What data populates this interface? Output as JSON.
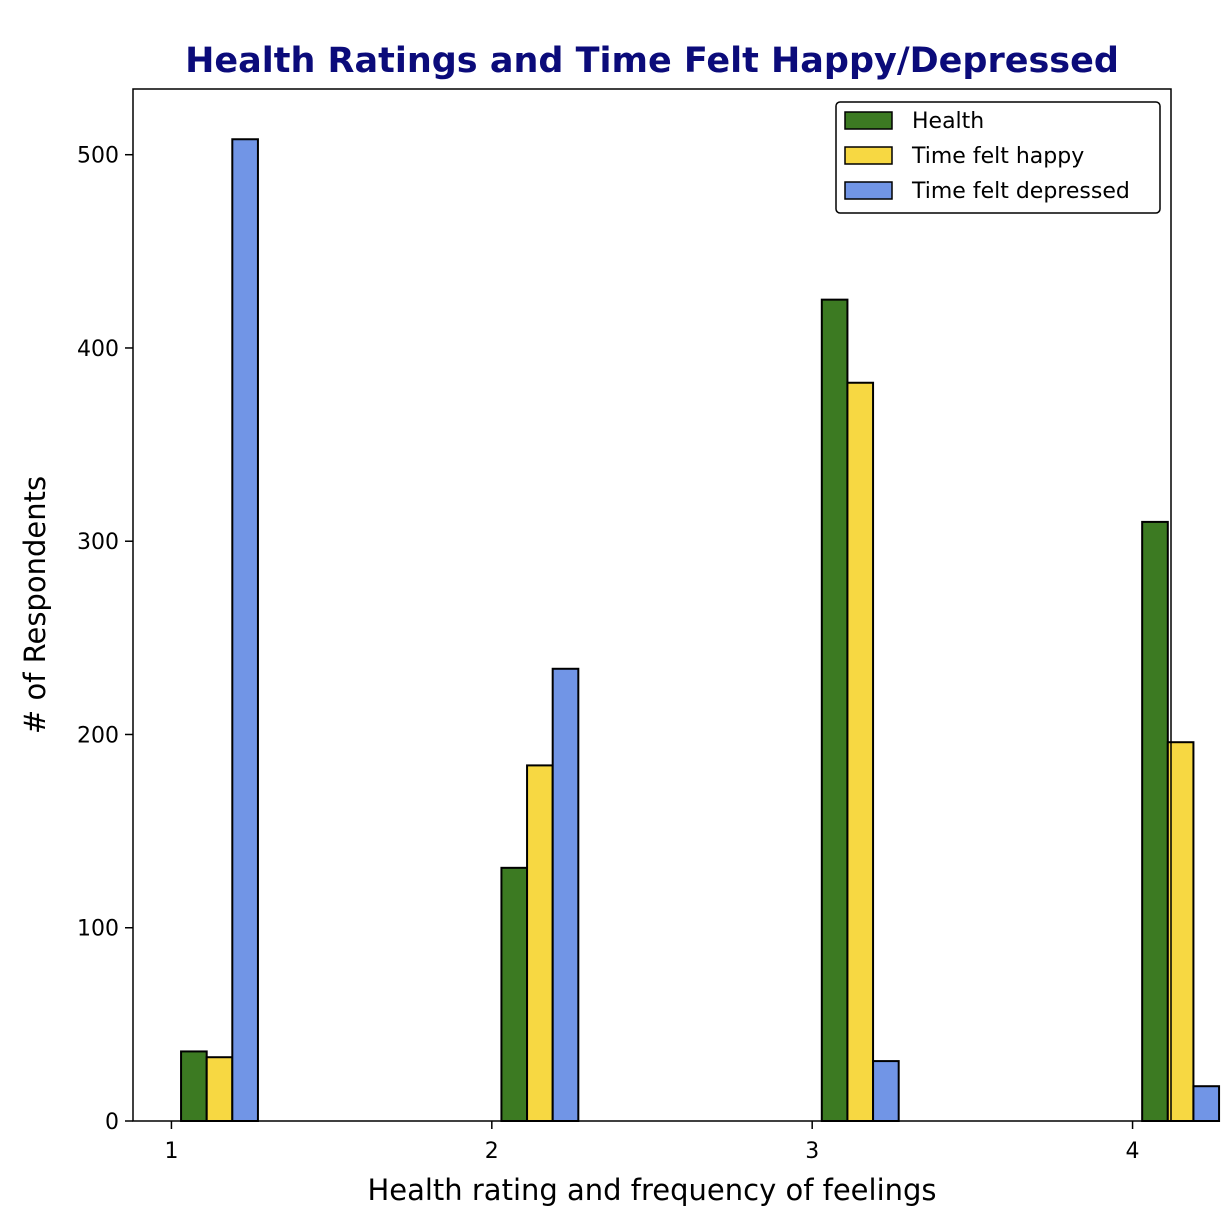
{
  "chart_data": {
    "type": "bar",
    "title": "Health Ratings and Time Felt Happy/Depressed",
    "xlabel": "Health rating and frequency of feelings",
    "ylabel": "# of Respondents",
    "categories": [
      "1",
      "2",
      "3",
      "4"
    ],
    "x": [
      1,
      2,
      3,
      4
    ],
    "xlim": [
      0.88,
      4.12
    ],
    "ylim": [
      0,
      534
    ],
    "xticks": [
      "1",
      "2",
      "3",
      "4"
    ],
    "yticks": [
      "0",
      "100",
      "200",
      "300",
      "400",
      "500"
    ],
    "grid": false,
    "legend_position": "top-right",
    "series": [
      {
        "name": "Health",
        "color": "#3c7a22",
        "values": [
          36,
          131,
          425,
          310
        ]
      },
      {
        "name": "Time felt happy",
        "color": "#f7d842",
        "values": [
          33,
          184,
          382,
          196
        ]
      },
      {
        "name": "Time felt depressed",
        "color": "#7195e6",
        "values": [
          508,
          234,
          31,
          18
        ]
      }
    ]
  }
}
